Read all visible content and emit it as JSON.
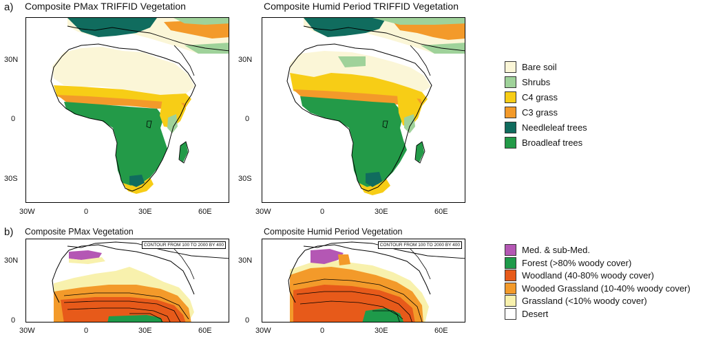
{
  "panel_a": {
    "label": "a)",
    "left_map": {
      "title": "Composite PMax TRIFFID Vegetation"
    },
    "right_map": {
      "title": "Composite Humid Period TRIFFID Vegetation"
    },
    "lat_ticks": [
      "30N",
      "0",
      "30S"
    ],
    "lon_ticks": [
      "30W",
      "0",
      "30E",
      "60E"
    ],
    "legend": [
      {
        "label": "Bare soil",
        "color": "#fbf6d7"
      },
      {
        "label": "Shrubs",
        "color": "#9fd29a"
      },
      {
        "label": "C4 grass",
        "color": "#f7cd16"
      },
      {
        "label": "C3 grass",
        "color": "#f39a2a"
      },
      {
        "label": "Needleleaf trees",
        "color": "#106c5e"
      },
      {
        "label": "Broadleaf trees",
        "color": "#239a48"
      }
    ]
  },
  "panel_b": {
    "label": "b)",
    "left_map": {
      "title": "Composite PMax Vegetation",
      "contour_note": "CONTOUR FROM 100 TO 2000 BY 400"
    },
    "right_map": {
      "title": "Composite Humid Period Vegetation",
      "contour_note": "CONTOUR FROM 100 TO 2000 BY 400"
    },
    "lat_ticks": [
      "30N",
      "0"
    ],
    "lon_ticks": [
      "30W",
      "0",
      "30E",
      "60E"
    ],
    "legend": [
      {
        "label": "Med. & sub-Med.",
        "color": "#b457b4"
      },
      {
        "label": "Forest (>80% woody cover)",
        "color": "#1e9a4a"
      },
      {
        "label": "Woodland (40-80% woody cover)",
        "color": "#e75a1a"
      },
      {
        "label": "Wooded Grassland (10-40% woody cover)",
        "color": "#f39a2a"
      },
      {
        "label": "Grassland (<10% woody cover)",
        "color": "#f8f1ad"
      },
      {
        "label": "Desert",
        "color": "#ffffff"
      }
    ]
  }
}
